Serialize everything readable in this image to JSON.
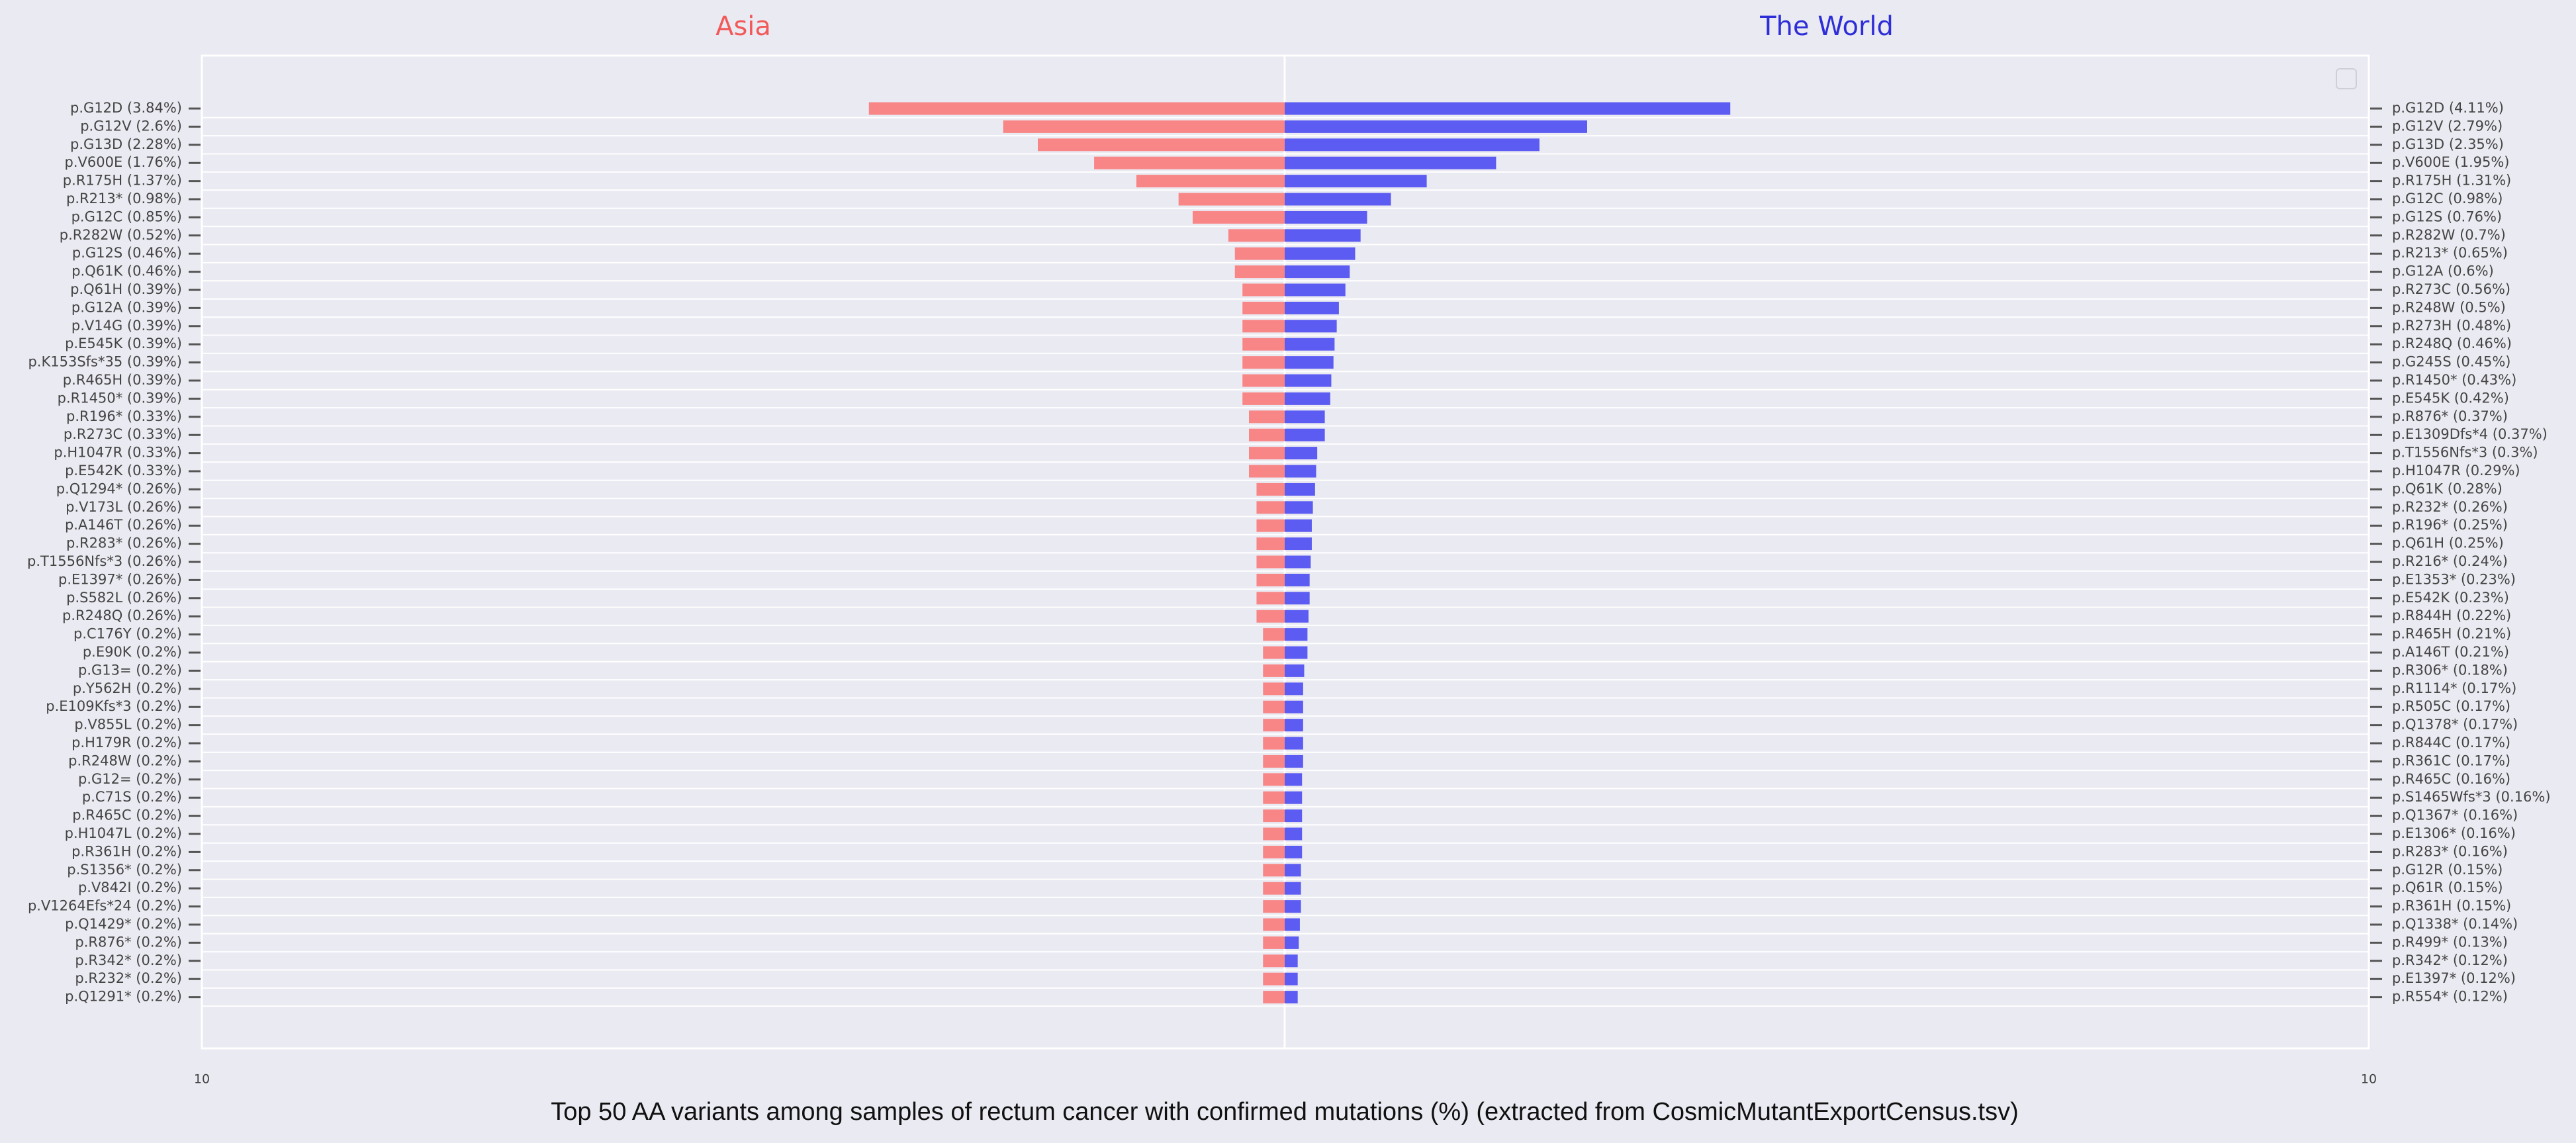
{
  "title": "Top 50 AA variants among samples of rectum cancer with confirmed mutations (%) (extracted from CosmicMutantExportCensus.tsv)",
  "chart_data": [
    {
      "type": "bar",
      "orientation": "horizontal",
      "title": "Asia",
      "color": "#f88686",
      "xlim": [
        10,
        0
      ],
      "xticks": [
        10
      ],
      "categories": [
        "p.G12D (3.84%)",
        "p.G12V (2.6%)",
        "p.G13D (2.28%)",
        "p.V600E (1.76%)",
        "p.R175H (1.37%)",
        "p.R213* (0.98%)",
        "p.G12C (0.85%)",
        "p.R282W (0.52%)",
        "p.G12S (0.46%)",
        "p.Q61K (0.46%)",
        "p.Q61H (0.39%)",
        "p.G12A (0.39%)",
        "p.V14G (0.39%)",
        "p.E545K (0.39%)",
        "p.K153Sfs*35 (0.39%)",
        "p.R465H (0.39%)",
        "p.R1450* (0.39%)",
        "p.R196* (0.33%)",
        "p.R273C (0.33%)",
        "p.H1047R (0.33%)",
        "p.E542K (0.33%)",
        "p.Q1294* (0.26%)",
        "p.V173L (0.26%)",
        "p.A146T (0.26%)",
        "p.R283* (0.26%)",
        "p.T1556Nfs*3 (0.26%)",
        "p.E1397* (0.26%)",
        "p.S582L (0.26%)",
        "p.R248Q (0.26%)",
        "p.C176Y (0.2%)",
        "p.E90K (0.2%)",
        "p.G13= (0.2%)",
        "p.Y562H (0.2%)",
        "p.E109Kfs*3 (0.2%)",
        "p.V855L (0.2%)",
        "p.H179R (0.2%)",
        "p.R248W (0.2%)",
        "p.G12= (0.2%)",
        "p.C71S (0.2%)",
        "p.R465C (0.2%)",
        "p.H1047L (0.2%)",
        "p.R361H (0.2%)",
        "p.S1356* (0.2%)",
        "p.V842I (0.2%)",
        "p.V1264Efs*24 (0.2%)",
        "p.Q1429* (0.2%)",
        "p.R876* (0.2%)",
        "p.R342* (0.2%)",
        "p.R232* (0.2%)",
        "p.Q1291* (0.2%)"
      ],
      "values": [
        3.84,
        2.6,
        2.28,
        1.76,
        1.37,
        0.98,
        0.85,
        0.52,
        0.46,
        0.46,
        0.39,
        0.39,
        0.39,
        0.39,
        0.39,
        0.39,
        0.39,
        0.33,
        0.33,
        0.33,
        0.33,
        0.26,
        0.26,
        0.26,
        0.26,
        0.26,
        0.26,
        0.26,
        0.26,
        0.2,
        0.2,
        0.2,
        0.2,
        0.2,
        0.2,
        0.2,
        0.2,
        0.2,
        0.2,
        0.2,
        0.2,
        0.2,
        0.2,
        0.2,
        0.2,
        0.2,
        0.2,
        0.2,
        0.2,
        0.2
      ]
    },
    {
      "type": "bar",
      "orientation": "horizontal",
      "title": "The World",
      "color": "#5c5cf2",
      "xlim": [
        0,
        10
      ],
      "xticks": [
        10
      ],
      "categories": [
        "p.G12D (4.11%)",
        "p.G12V (2.79%)",
        "p.G13D (2.35%)",
        "p.V600E (1.95%)",
        "p.R175H (1.31%)",
        "p.G12C (0.98%)",
        "p.G12S (0.76%)",
        "p.R282W (0.7%)",
        "p.R213* (0.65%)",
        "p.G12A (0.6%)",
        "p.R273C (0.56%)",
        "p.R248W (0.5%)",
        "p.R273H (0.48%)",
        "p.R248Q (0.46%)",
        "p.G245S (0.45%)",
        "p.R1450* (0.43%)",
        "p.E545K (0.42%)",
        "p.R876* (0.37%)",
        "p.E1309Dfs*4 (0.37%)",
        "p.T1556Nfs*3 (0.3%)",
        "p.H1047R (0.29%)",
        "p.Q61K (0.28%)",
        "p.R232* (0.26%)",
        "p.R196* (0.25%)",
        "p.Q61H (0.25%)",
        "p.R216* (0.24%)",
        "p.E1353* (0.23%)",
        "p.E542K (0.23%)",
        "p.R844H (0.22%)",
        "p.R465H (0.21%)",
        "p.A146T (0.21%)",
        "p.R306* (0.18%)",
        "p.R1114* (0.17%)",
        "p.R505C (0.17%)",
        "p.Q1378* (0.17%)",
        "p.R844C (0.17%)",
        "p.R361C (0.17%)",
        "p.R465C (0.16%)",
        "p.S1465Wfs*3 (0.16%)",
        "p.Q1367* (0.16%)",
        "p.E1306* (0.16%)",
        "p.R283* (0.16%)",
        "p.G12R (0.15%)",
        "p.Q61R (0.15%)",
        "p.R361H (0.15%)",
        "p.Q1338* (0.14%)",
        "p.R499* (0.13%)",
        "p.R342* (0.12%)",
        "p.E1397* (0.12%)",
        "p.R554* (0.12%)"
      ],
      "values": [
        4.11,
        2.79,
        2.35,
        1.95,
        1.31,
        0.98,
        0.76,
        0.7,
        0.65,
        0.6,
        0.56,
        0.5,
        0.48,
        0.46,
        0.45,
        0.43,
        0.42,
        0.37,
        0.37,
        0.3,
        0.29,
        0.28,
        0.26,
        0.25,
        0.25,
        0.24,
        0.23,
        0.23,
        0.22,
        0.21,
        0.21,
        0.18,
        0.17,
        0.17,
        0.17,
        0.17,
        0.17,
        0.16,
        0.16,
        0.16,
        0.16,
        0.16,
        0.15,
        0.15,
        0.15,
        0.14,
        0.13,
        0.12,
        0.12,
        0.12
      ]
    }
  ]
}
